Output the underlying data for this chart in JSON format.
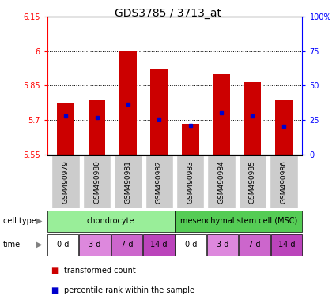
{
  "title": "GDS3785 / 3713_at",
  "samples": [
    "GSM490979",
    "GSM490980",
    "GSM490981",
    "GSM490982",
    "GSM490983",
    "GSM490984",
    "GSM490985",
    "GSM490986"
  ],
  "bar_bottoms": [
    5.55,
    5.55,
    5.55,
    5.55,
    5.55,
    5.55,
    5.55,
    5.55
  ],
  "bar_tops": [
    5.775,
    5.785,
    6.0,
    5.925,
    5.685,
    5.9,
    5.865,
    5.785
  ],
  "percentile_values": [
    5.718,
    5.712,
    5.77,
    5.705,
    5.677,
    5.73,
    5.717,
    5.672
  ],
  "y_min": 5.55,
  "y_max": 6.15,
  "y_ticks": [
    5.55,
    5.7,
    5.85,
    6.0,
    6.15
  ],
  "y_tick_labels": [
    "5.55",
    "5.7",
    "5.85",
    "6",
    "6.15"
  ],
  "right_y_ticks": [
    0,
    25,
    50,
    75,
    100
  ],
  "right_y_tick_labels": [
    "0",
    "25",
    "50",
    "75",
    "100%"
  ],
  "bar_color": "#cc0000",
  "percentile_color": "#0000cc",
  "cell_type_groups": [
    {
      "label": "chondrocyte",
      "start": 0,
      "end": 4,
      "color": "#99ee99"
    },
    {
      "label": "mesenchymal stem cell (MSC)",
      "start": 4,
      "end": 8,
      "color": "#55cc55"
    }
  ],
  "time_labels": [
    "0 d",
    "3 d",
    "7 d",
    "14 d",
    "0 d",
    "3 d",
    "7 d",
    "14 d"
  ],
  "time_colors": [
    "#ffffff",
    "#dd88dd",
    "#cc66cc",
    "#bb44bb",
    "#ffffff",
    "#dd88dd",
    "#cc66cc",
    "#bb44bb"
  ],
  "xlabel_samples_bg": "#cccccc",
  "legend_items": [
    {
      "color": "#cc0000",
      "label": "transformed count"
    },
    {
      "color": "#0000cc",
      "label": "percentile rank within the sample"
    }
  ],
  "title_fontsize": 10,
  "tick_fontsize": 7,
  "sample_label_fontsize": 6.5
}
